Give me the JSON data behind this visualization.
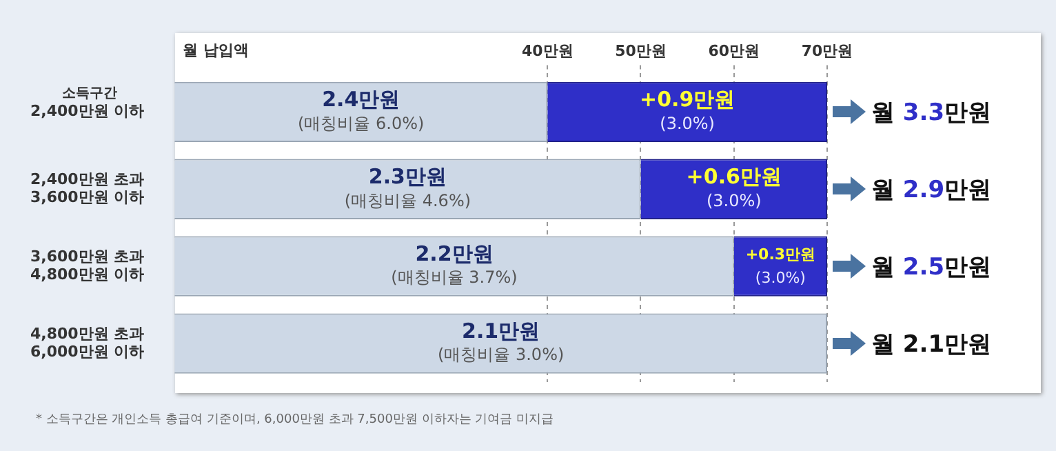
{
  "chart_data": {
    "type": "bar",
    "orientation": "horizontal",
    "stacked": true,
    "xlabel": "월 납입액",
    "ylabel": "소득구간",
    "categories": [
      "2,400만원 이하",
      "2,400만원 초과\n3,600만원 이하",
      "3,600만원 초과\n4,800만원 이하",
      "4,800만원 초과\n6,000만원 이하"
    ],
    "series": [
      {
        "color": "#cdd8e6",
        "values": [
          40,
          50,
          60,
          70
        ]
      },
      {
        "color": "#2f2fc8",
        "values": [
          30,
          20,
          10,
          0
        ]
      }
    ],
    "totals": [
      "월 3.3만원",
      "월 2.9만원",
      "월 2.5만원",
      "월 2.1만원"
    ],
    "xlim": [
      0,
      70
    ],
    "xticks": [
      {
        "value": 40,
        "label": "40만원"
      },
      {
        "value": 50,
        "label": "50만원"
      },
      {
        "value": 60,
        "label": "60만원"
      },
      {
        "value": 70,
        "label": "70만원"
      }
    ],
    "grid": "x",
    "annotations": [
      {
        "text": "2.4만원\n(매칭비율 6.0%)",
        "x": 20,
        "y": "2,400만원 이하"
      },
      {
        "text": "2.3만원\n(매칭비율 4.6%)",
        "x": 25,
        "y": "2,400만원 초과\n3,600만원 이하"
      },
      {
        "text": "2.2만원\n(매칭비율 3.7%)",
        "x": 30,
        "y": "3,600만원 초과\n4,800만원 이하"
      },
      {
        "text": "2.1만원\n(매칭비율 3.0%)",
        "x": 35,
        "y": "4,800만원 초과\n6,000만원 이하"
      },
      {
        "text": "+0.9만원\n(3.0%)",
        "x": 55,
        "y": "2,400만원 이하"
      },
      {
        "text": "+0.6만원\n(3.0%)",
        "x": 60,
        "y": "2,400만원 초과\n3,600만원 이하"
      },
      {
        "text": "+0.3만원\n(3.0%)",
        "x": 65,
        "y": "3,600만원 초과\n4,800만원 이하"
      },
      "* 소득구간은 개인소득 총급여 기준이며, 6,000만원 초과 7,500만원 이하자는 기여금 미지급"
    ]
  }
}
